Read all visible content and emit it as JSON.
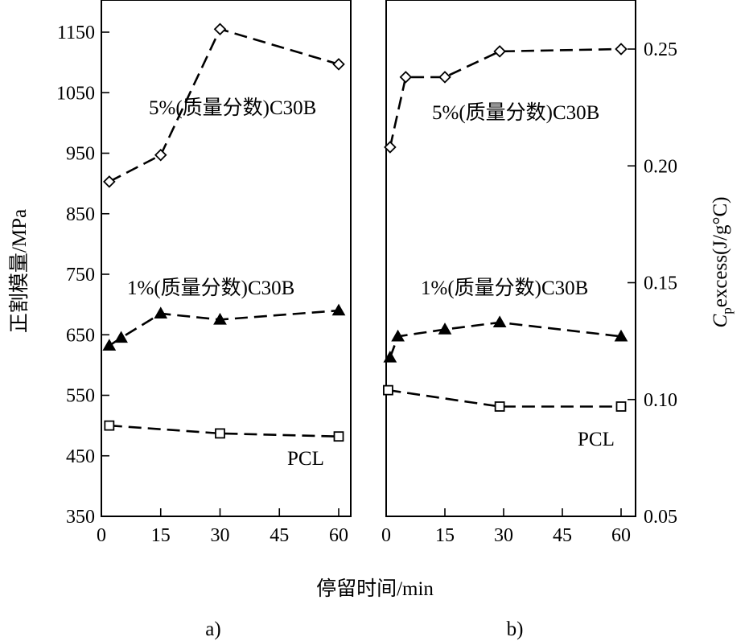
{
  "chart_data": [
    {
      "panel": "a)",
      "type": "line",
      "xlabel": "停留时间/min",
      "ylabel": "正割模量/MPa",
      "xlim": [
        0,
        65
      ],
      "ylim": [
        350,
        1200
      ],
      "x_ticks": [
        0,
        15,
        30,
        45,
        60
      ],
      "y_ticks": [
        350,
        450,
        550,
        650,
        750,
        850,
        950,
        1050,
        1150
      ],
      "series": [
        {
          "name": "5%(质量分数)C30B",
          "marker": "diamond",
          "x": [
            2,
            15,
            30,
            60
          ],
          "y": [
            903,
            947,
            1155,
            1097
          ]
        },
        {
          "name": "1%(质量分数)C30B",
          "marker": "triangle",
          "x": [
            2,
            5,
            15,
            30,
            60
          ],
          "y": [
            632,
            645,
            685,
            675,
            690
          ]
        },
        {
          "name": "PCL",
          "marker": "square",
          "x": [
            2,
            30,
            60
          ],
          "y": [
            500,
            487,
            482
          ]
        }
      ],
      "grid": false
    },
    {
      "panel": "b)",
      "type": "line",
      "xlabel": "停留时间/min",
      "ylabel_main": "C",
      "ylabel_sub": "p",
      "ylabel_rest": "excess(J/g°C)",
      "xlim": [
        0,
        65
      ],
      "ylim": [
        0.05,
        0.27
      ],
      "x_ticks": [
        0,
        15,
        30,
        45,
        60
      ],
      "y_ticks": [
        0.05,
        0.1,
        0.15,
        0.2,
        0.25
      ],
      "y_tick_labels": [
        "0.05",
        "0.10",
        "0.15",
        "0.20",
        "0.25"
      ],
      "series": [
        {
          "name": "5%(质量分数)C30B",
          "marker": "diamond",
          "x": [
            1,
            5,
            15,
            29,
            60
          ],
          "y": [
            0.208,
            0.238,
            0.238,
            0.249,
            0.25
          ]
        },
        {
          "name": "1%(质量分数)C30B",
          "marker": "triangle",
          "x": [
            1,
            3,
            15,
            29,
            60
          ],
          "y": [
            0.118,
            0.127,
            0.13,
            0.133,
            0.127
          ]
        },
        {
          "name": "PCL",
          "marker": "square",
          "x": [
            0.5,
            29,
            60
          ],
          "y": [
            0.104,
            0.097,
            0.097
          ]
        }
      ],
      "grid": false
    }
  ],
  "common_xlabel": "停留时间/min"
}
